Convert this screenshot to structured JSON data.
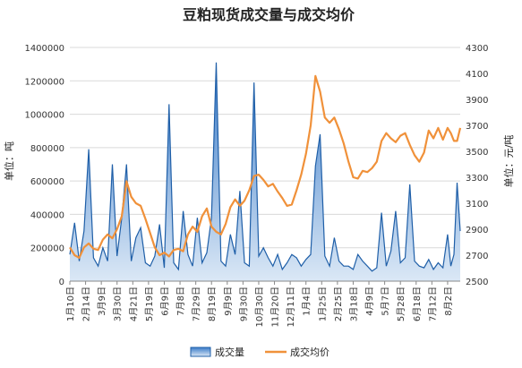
{
  "chart_data": {
    "type": "line",
    "title": "豆粕现货成交量与成交均价",
    "y_left": {
      "label": "单位：吨",
      "ylim": [
        0,
        1400000
      ],
      "ticks": [
        "0",
        "200000",
        "400000",
        "600000",
        "800000",
        "1000000",
        "1200000",
        "1400000"
      ]
    },
    "y_right": {
      "label": "单位：元/吨",
      "ylim": [
        2500,
        4300
      ],
      "ticks": [
        "2500",
        "2700",
        "2900",
        "3100",
        "3300",
        "3500",
        "3700",
        "3900",
        "4100",
        "4300"
      ]
    },
    "x_tick_labels": [
      "1月10日",
      "2月14日",
      "3月9日",
      "3月30日",
      "4月21日",
      "5月19日",
      "6月9日",
      "7月8日",
      "7月29日",
      "8月19日",
      "9月9日",
      "9月30日",
      "10月30日",
      "11月20日",
      "12月11日",
      "1月4日",
      "1月25日",
      "2月25日",
      "3月18日",
      "4月9日",
      "5月7日",
      "5月28日",
      "6月18日",
      "7月12日",
      "8月2日"
    ],
    "grid": true,
    "legend_position": "bottom",
    "series": [
      {
        "name": "成交量",
        "kind": "area",
        "axis": "left",
        "color": "#1f5fa8",
        "fill_top": "#3a7bc8",
        "fill_bottom": "#dbe8f6",
        "x": [
          0,
          0.3,
          0.6,
          0.9,
          1.2,
          1.5,
          1.8,
          2.1,
          2.4,
          2.7,
          3.0,
          3.3,
          3.6,
          3.9,
          4.2,
          4.5,
          4.8,
          5.1,
          5.4,
          5.7,
          6.0,
          6.3,
          6.6,
          6.9,
          7.2,
          7.5,
          7.8,
          8.1,
          8.4,
          8.7,
          9.0,
          9.3,
          9.6,
          9.9,
          10.2,
          10.5,
          10.8,
          11.1,
          11.4,
          11.7,
          12.0,
          12.3,
          12.6,
          12.9,
          13.2,
          13.5,
          13.8,
          14.1,
          14.4,
          14.7,
          15.0,
          15.3,
          15.6,
          15.9,
          16.2,
          16.5,
          16.8,
          17.1,
          17.4,
          17.7,
          18.0,
          18.3,
          18.6,
          18.9,
          19.2,
          19.5,
          19.8,
          20.1,
          20.4,
          20.7,
          21.0,
          21.3,
          21.6,
          21.9,
          22.2,
          22.5,
          22.8,
          23.1,
          23.4,
          23.7,
          24.0,
          24.2,
          24.4,
          24.6,
          24.8
        ],
        "values": [
          160000,
          350000,
          120000,
          300000,
          790000,
          140000,
          90000,
          200000,
          120000,
          700000,
          150000,
          380000,
          700000,
          120000,
          260000,
          320000,
          110000,
          90000,
          150000,
          340000,
          80000,
          1060000,
          110000,
          70000,
          420000,
          160000,
          90000,
          380000,
          110000,
          170000,
          380000,
          1310000,
          120000,
          90000,
          280000,
          160000,
          540000,
          110000,
          90000,
          1190000,
          150000,
          200000,
          140000,
          90000,
          160000,
          70000,
          110000,
          160000,
          140000,
          90000,
          130000,
          160000,
          690000,
          880000,
          150000,
          90000,
          260000,
          120000,
          90000,
          90000,
          70000,
          160000,
          120000,
          90000,
          60000,
          80000,
          410000,
          90000,
          180000,
          420000,
          110000,
          140000,
          580000,
          120000,
          90000,
          80000,
          130000,
          70000,
          110000,
          80000,
          280000,
          90000,
          160000,
          590000,
          300000
        ]
      },
      {
        "name": "成交均价",
        "kind": "line",
        "axis": "right",
        "color": "#f0913a",
        "x": [
          0,
          0.3,
          0.6,
          0.9,
          1.2,
          1.5,
          1.8,
          2.1,
          2.4,
          2.7,
          3.0,
          3.3,
          3.6,
          3.9,
          4.2,
          4.5,
          4.8,
          5.1,
          5.4,
          5.7,
          6.0,
          6.3,
          6.6,
          6.9,
          7.2,
          7.5,
          7.8,
          8.1,
          8.4,
          8.7,
          9.0,
          9.3,
          9.6,
          9.9,
          10.2,
          10.5,
          10.8,
          11.1,
          11.4,
          11.7,
          12.0,
          12.3,
          12.6,
          12.9,
          13.2,
          13.5,
          13.8,
          14.1,
          14.4,
          14.7,
          15.0,
          15.3,
          15.6,
          15.9,
          16.2,
          16.5,
          16.8,
          17.1,
          17.4,
          17.7,
          18.0,
          18.3,
          18.6,
          18.9,
          19.2,
          19.5,
          19.8,
          20.1,
          20.4,
          20.7,
          21.0,
          21.3,
          21.6,
          21.9,
          22.2,
          22.5,
          22.8,
          23.1,
          23.4,
          23.7,
          24.0,
          24.2,
          24.4,
          24.6,
          24.8
        ],
        "values": [
          2760,
          2700,
          2680,
          2760,
          2790,
          2750,
          2740,
          2820,
          2860,
          2830,
          2900,
          3000,
          3270,
          3150,
          3100,
          3080,
          2980,
          2870,
          2760,
          2700,
          2720,
          2690,
          2740,
          2750,
          2730,
          2860,
          2920,
          2880,
          3000,
          3060,
          2920,
          2880,
          2860,
          2940,
          3070,
          3130,
          3080,
          3120,
          3200,
          3310,
          3320,
          3280,
          3230,
          3250,
          3190,
          3140,
          3080,
          3090,
          3200,
          3320,
          3480,
          3700,
          4080,
          3960,
          3760,
          3720,
          3760,
          3670,
          3560,
          3420,
          3300,
          3290,
          3350,
          3340,
          3370,
          3420,
          3580,
          3640,
          3600,
          3570,
          3620,
          3640,
          3550,
          3470,
          3420,
          3490,
          3660,
          3600,
          3680,
          3590,
          3680,
          3640,
          3580,
          3580,
          3680
        ]
      }
    ]
  }
}
